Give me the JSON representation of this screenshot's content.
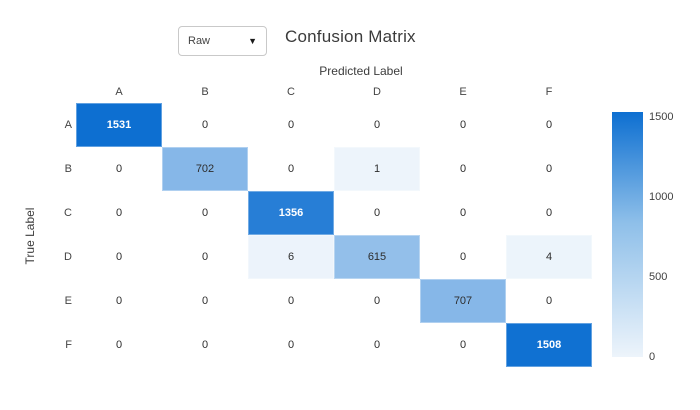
{
  "header": {
    "dropdown": {
      "value": "Raw",
      "arrow": "▼"
    },
    "title": "Confusion Matrix"
  },
  "chart_data": {
    "type": "heatmap",
    "title": "Confusion Matrix",
    "xlabel": "Predicted Label",
    "ylabel": "True Label",
    "categories": [
      "A",
      "B",
      "C",
      "D",
      "E",
      "F"
    ],
    "matrix": [
      [
        1531,
        0,
        0,
        0,
        0,
        0
      ],
      [
        0,
        702,
        0,
        1,
        0,
        0
      ],
      [
        0,
        0,
        1356,
        0,
        0,
        0
      ],
      [
        0,
        0,
        6,
        615,
        0,
        4
      ],
      [
        0,
        0,
        0,
        0,
        707,
        0
      ],
      [
        0,
        0,
        0,
        0,
        0,
        1508
      ]
    ],
    "colorscale": {
      "zero_color": "#ffffff",
      "min_color": "#edf4fb",
      "max_color": "#0d6fd1",
      "domain": [
        0,
        1531
      ]
    },
    "colorbar_ticks": [
      "0",
      "500",
      "1000",
      "1500"
    ],
    "legend_position": "right",
    "grid": false
  }
}
